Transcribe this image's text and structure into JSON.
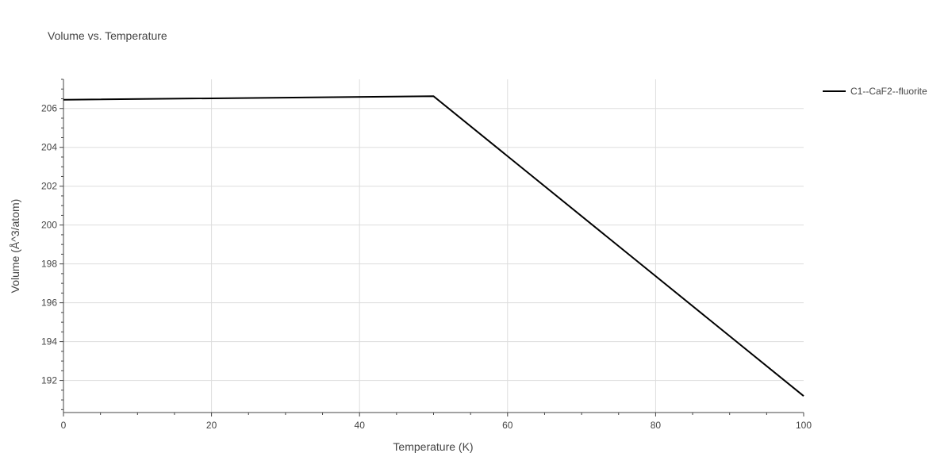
{
  "chart_data": {
    "type": "line",
    "title": "Volume vs. Temperature",
    "xlabel": "Temperature (K)",
    "ylabel": "Volume (Å^3/atom)",
    "xlim": [
      0,
      100
    ],
    "ylim": [
      190.35,
      207.5
    ],
    "x_ticks": [
      0,
      20,
      40,
      60,
      80,
      100
    ],
    "y_ticks": [
      192,
      194,
      196,
      198,
      200,
      202,
      204,
      206
    ],
    "grid": true,
    "legend_position": "top-right",
    "series": [
      {
        "name": "C1--CaF2--fluorite",
        "color": "#000000",
        "x": [
          0,
          50,
          100
        ],
        "y": [
          206.45,
          206.63,
          191.2
        ]
      }
    ]
  }
}
